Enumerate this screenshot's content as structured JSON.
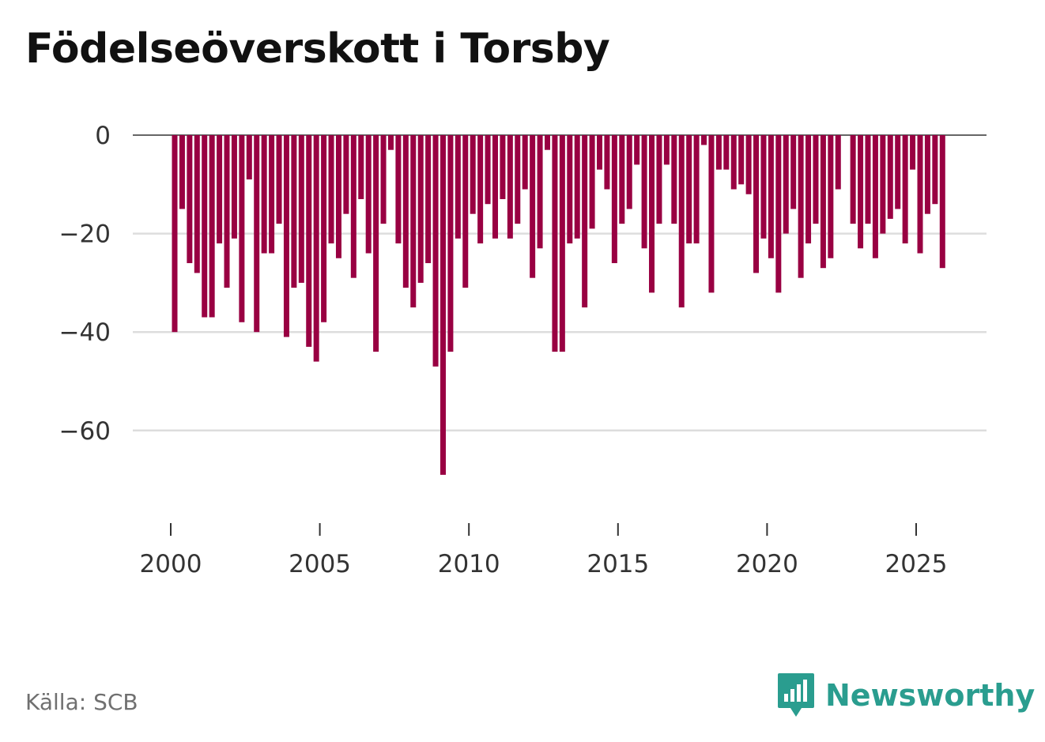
{
  "title": "Födelseöverskott i Torsby",
  "source": "Källa: SCB",
  "brand": {
    "name": "Newsworthy",
    "icon": "newsworthy-logo-icon",
    "color": "#2a9d8f"
  },
  "colors": {
    "bar": "#990042",
    "grid": "#dddddd",
    "axis": "#333333"
  },
  "chart_data": {
    "type": "bar",
    "title": "Födelseöverskott i Torsby",
    "xlabel": "",
    "ylabel": "",
    "frequency": "quarterly",
    "start_year": 2000,
    "ylim": [
      -78,
      2
    ],
    "yticks": [
      0,
      -20,
      -40,
      -60
    ],
    "ytick_labels": [
      "0",
      "−20",
      "−40",
      "−60"
    ],
    "xticks": [
      2000,
      2005,
      2010,
      2015,
      2020,
      2025
    ],
    "xtick_labels": [
      "2000",
      "2005",
      "2010",
      "2015",
      "2020",
      "2025"
    ],
    "values": [
      -40,
      -15,
      -26,
      -28,
      -37,
      -37,
      -22,
      -31,
      -21,
      -38,
      -9,
      -40,
      -24,
      -24,
      -18,
      -41,
      -31,
      -30,
      -43,
      -46,
      -38,
      -22,
      -25,
      -16,
      -29,
      -13,
      -24,
      -44,
      -18,
      -3,
      -22,
      -31,
      -35,
      -30,
      -26,
      -47,
      -69,
      -44,
      -21,
      -31,
      -16,
      -22,
      -14,
      -21,
      -13,
      -21,
      -18,
      -11,
      -29,
      -23,
      -3,
      -44,
      -44,
      -22,
      -21,
      -35,
      -19,
      -7,
      -11,
      -26,
      -18,
      -15,
      -6,
      -23,
      -32,
      -18,
      -6,
      -18,
      -35,
      -22,
      -22,
      -2,
      -32,
      -7,
      -7,
      -11,
      -10,
      -12,
      -28,
      -21,
      -25,
      -32,
      -20,
      -15,
      -29,
      -22,
      -18,
      -27,
      -25,
      -11,
      0,
      -18,
      -23,
      -18,
      -25,
      -20,
      -17,
      -15,
      -22,
      -7,
      -24,
      -16,
      -14,
      -27
    ]
  }
}
